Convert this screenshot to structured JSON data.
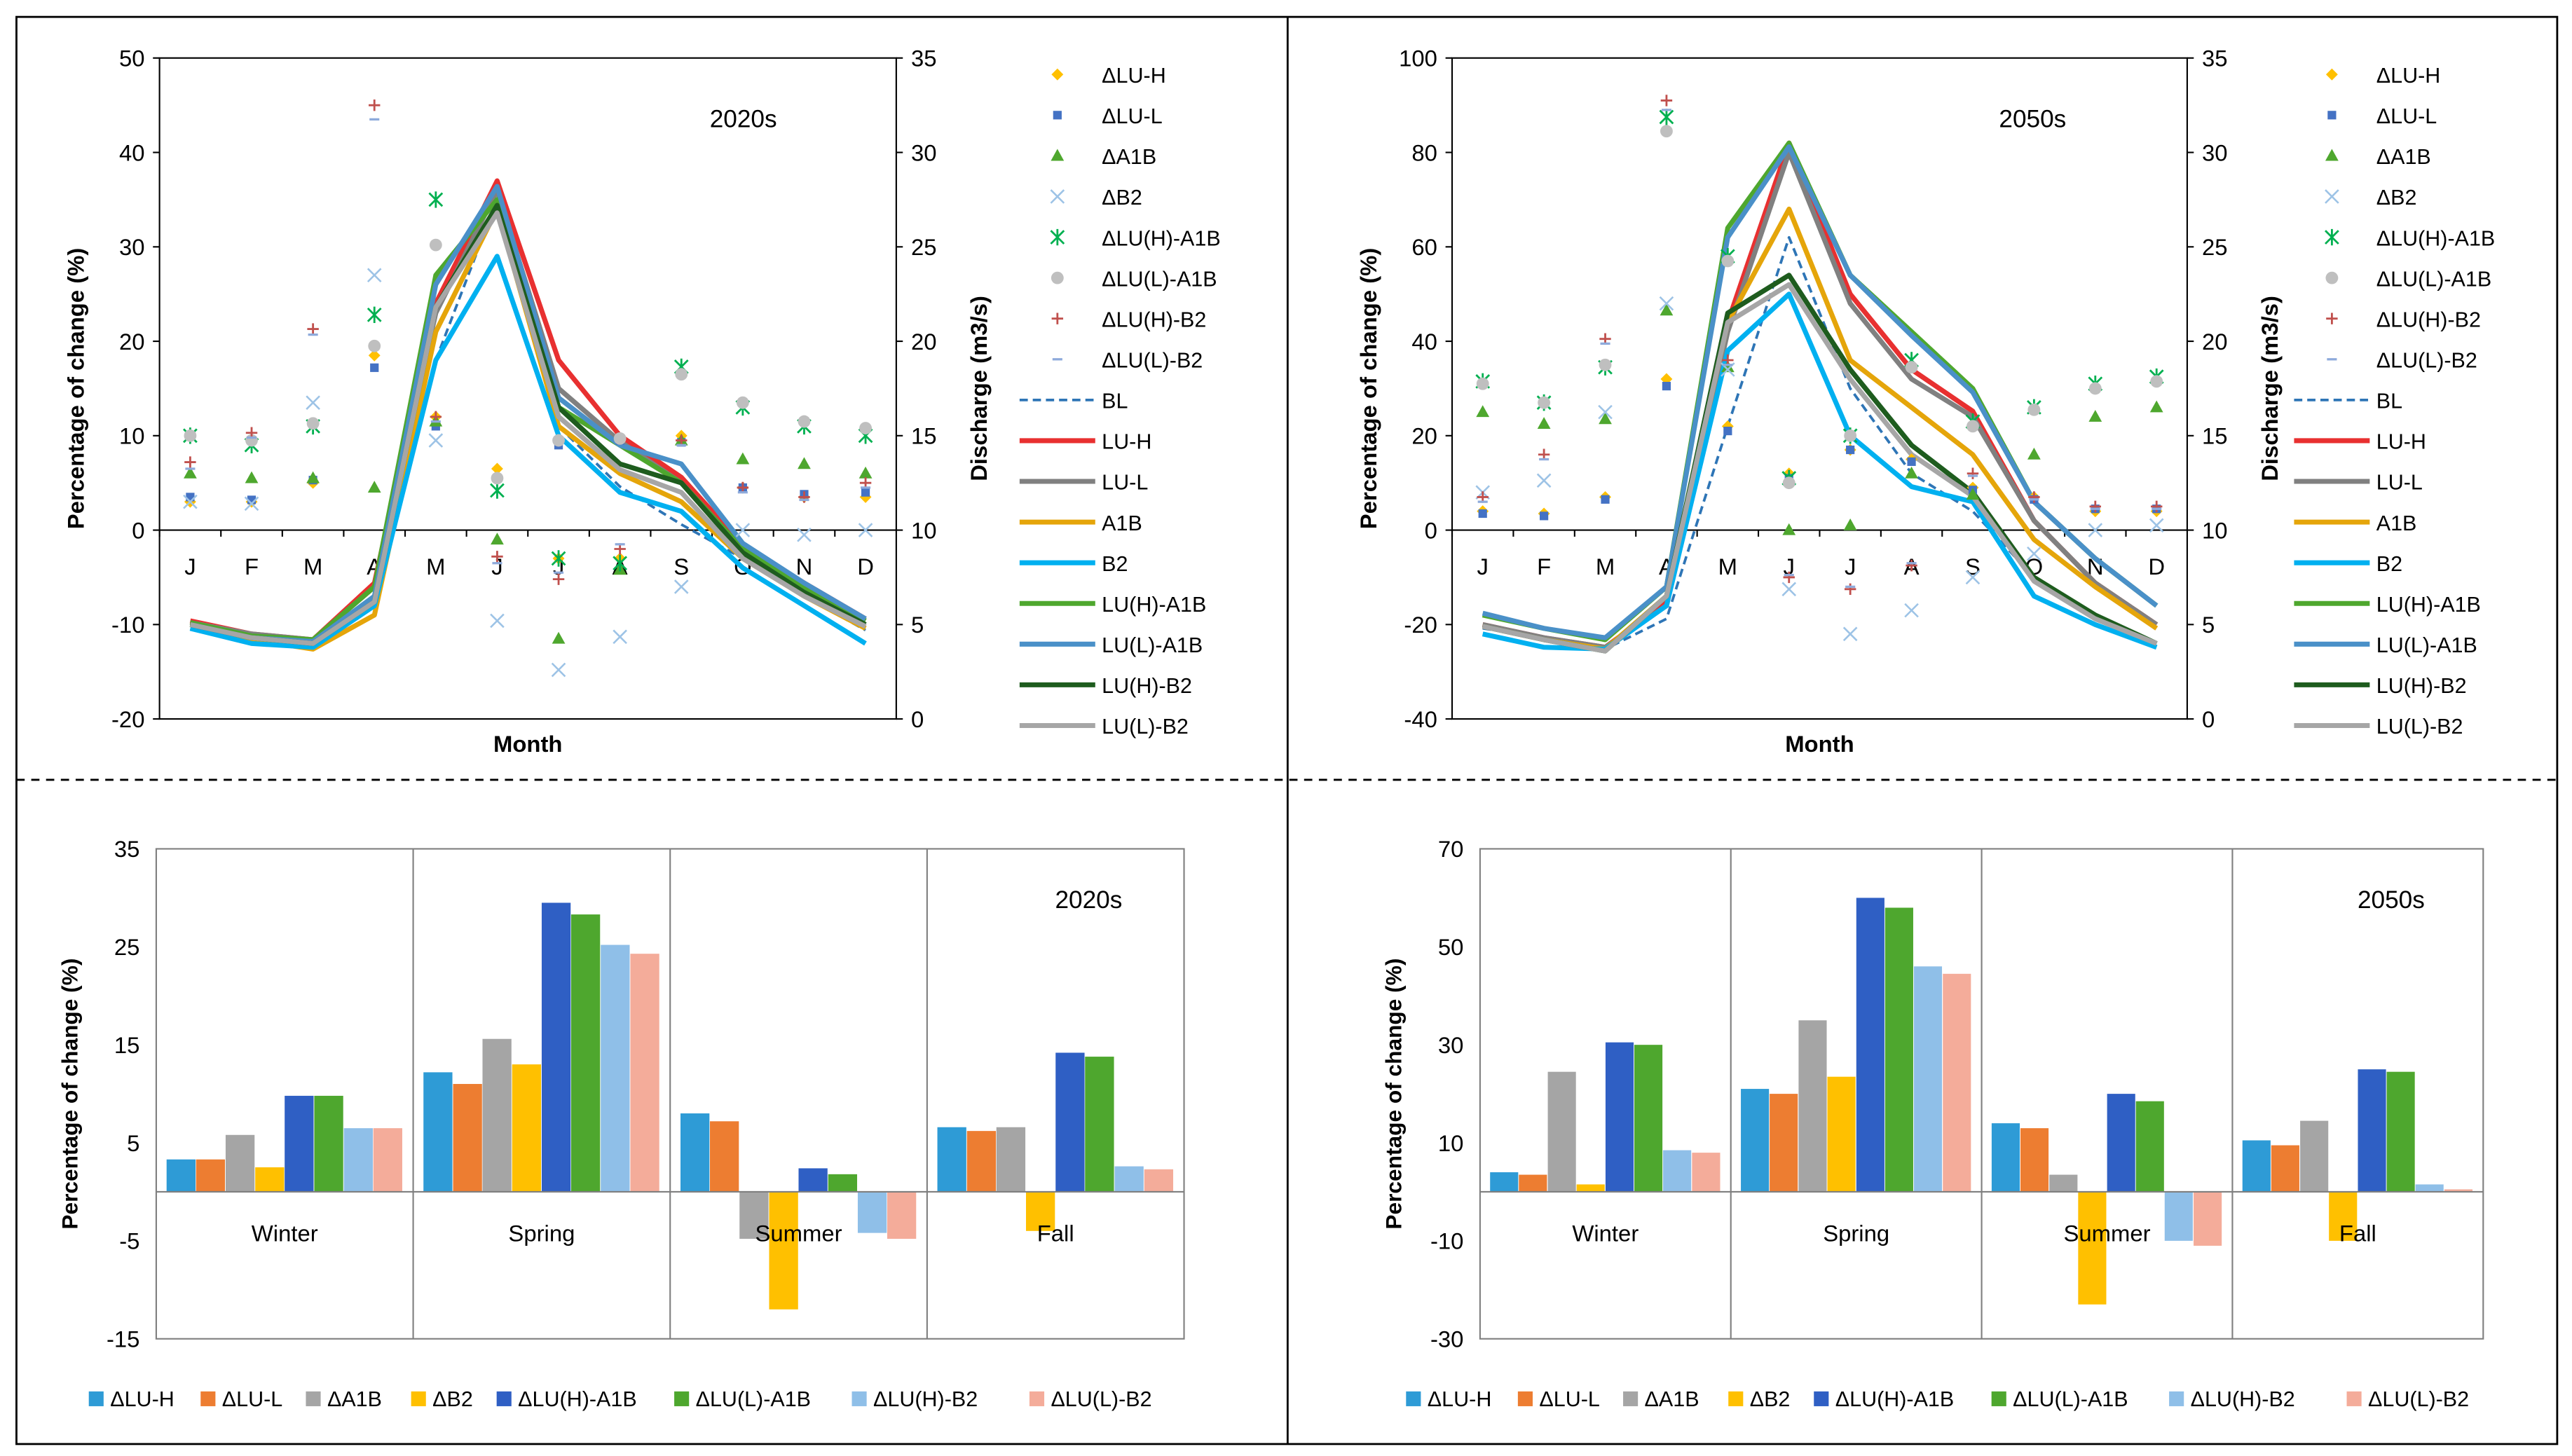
{
  "chart_data": [
    {
      "type": "line",
      "panel": "top-left",
      "title": "2020s",
      "xlabel": "Month",
      "ylabel": "Percentage of change (%)",
      "y2label": "Discharge  (m3/s)",
      "categories": [
        "J",
        "F",
        "M",
        "A",
        "M",
        "J",
        "J",
        "A",
        "S",
        "O",
        "N",
        "D"
      ],
      "ylim": [
        -20,
        50
      ],
      "y2lim": [
        0,
        35
      ],
      "yticks": [
        "-20",
        "-10",
        "0",
        "10",
        "20",
        "30",
        "40",
        "50"
      ],
      "y2ticks": [
        "0",
        "5",
        "10",
        "15",
        "20",
        "25",
        "30",
        "35"
      ],
      "legend": [
        "ΔLU-H",
        "ΔLU-L",
        "ΔA1B",
        "ΔB2",
        "ΔLU(H)-A1B",
        "ΔLU(L)-A1B",
        "ΔLU(H)-B2",
        "ΔLU(L)-B2",
        "BL",
        "LU-H",
        "LU-L",
        "A1B",
        "B2",
        "LU(H)-A1B",
        "LU(L)-A1B",
        "LU(H)-B2",
        "LU(L)-B2"
      ],
      "scatter_series": [
        {
          "name": "ΔLU-H",
          "color": "#ffc000",
          "marker": "diamond",
          "values": [
            3,
            3,
            5,
            18.5,
            12,
            6.5,
            -3,
            -3,
            10,
            4.5,
            3.5,
            3.5
          ]
        },
        {
          "name": "ΔLU-L",
          "color": "#4472c4",
          "marker": "square",
          "values": [
            3.5,
            3.2,
            5.3,
            17.2,
            11,
            5.5,
            9,
            9.5,
            9.3,
            4.5,
            3.8,
            4
          ]
        },
        {
          "name": "ΔA1B",
          "color": "#4ea72e",
          "marker": "triangle",
          "values": [
            6,
            5.5,
            5.5,
            4.5,
            11.5,
            -1,
            -11.5,
            -4.2,
            9.5,
            7.5,
            7,
            6
          ]
        },
        {
          "name": "ΔB2",
          "color": "#9dc3e6",
          "marker": "x",
          "values": [
            3,
            2.8,
            13.5,
            27,
            9.5,
            -9.6,
            -14.8,
            -11.3,
            -6,
            0,
            -0.5,
            0
          ]
        },
        {
          "name": "ΔLU(H)-A1B",
          "color": "#00b050",
          "marker": "asterisk",
          "values": [
            10,
            9,
            11,
            22.8,
            35,
            4.2,
            -3,
            -3.5,
            17.3,
            13,
            11,
            10
          ]
        },
        {
          "name": "ΔLU(L)-A1B",
          "color": "#bfbfbf",
          "marker": "circle",
          "values": [
            10,
            9.5,
            11.3,
            19.5,
            30.2,
            5.5,
            9.5,
            9.7,
            16.5,
            13.5,
            11.5,
            10.8
          ]
        },
        {
          "name": "ΔLU(H)-B2",
          "color": "#c0504d",
          "marker": "plus",
          "values": [
            7.2,
            10.3,
            21.3,
            45,
            12,
            -2.8,
            -5.2,
            -2,
            9.5,
            4.5,
            3.5,
            5
          ]
        },
        {
          "name": "ΔLU(L)-B2",
          "color": "#8eaadb",
          "marker": "dash",
          "values": [
            6.5,
            9.8,
            20.7,
            43.5,
            11.5,
            -3.5,
            -4.5,
            -1.5,
            9,
            4,
            3.2,
            4.5
          ]
        }
      ],
      "line_series": [
        {
          "name": "BL",
          "color": "#2e75b6",
          "dash": true,
          "values": [
            5,
            4.3,
            4,
            6.2,
            19,
            27.5,
            15.5,
            12.3,
            10.3,
            8.5,
            6.5,
            4.7
          ]
        },
        {
          "name": "LU-H",
          "color": "#e83030",
          "values": [
            5.2,
            4.5,
            4.2,
            7.2,
            22,
            28.5,
            19,
            15,
            12.8,
            9.2,
            7.2,
            5.3
          ]
        },
        {
          "name": "LU-L",
          "color": "#808080",
          "values": [
            5.1,
            4.5,
            4.2,
            7,
            21.5,
            28,
            17.5,
            14.7,
            12.5,
            9,
            7,
            5.2
          ]
        },
        {
          "name": "A1B",
          "color": "#e5a50a",
          "values": [
            5,
            4.2,
            3.7,
            5.5,
            20.5,
            27,
            15.5,
            13,
            11.5,
            8.5,
            6.5,
            4.8
          ]
        },
        {
          "name": "B2",
          "color": "#00b0f0",
          "values": [
            4.8,
            4,
            3.8,
            6,
            19,
            24.5,
            15,
            12,
            11,
            8,
            6,
            4
          ]
        },
        {
          "name": "LU(H)-A1B",
          "color": "#4ea72e",
          "values": [
            5.1,
            4.4,
            4.2,
            7,
            23.5,
            27.5,
            16.5,
            14.5,
            12.5,
            9,
            7,
            5.2
          ]
        },
        {
          "name": "LU(L)-A1B",
          "color": "#4a90c8",
          "values": [
            5,
            4.3,
            4.1,
            6.5,
            23,
            28.2,
            17,
            14.5,
            13.5,
            9.3,
            7.2,
            5.3
          ]
        },
        {
          "name": "LU(H)-B2",
          "color": "#1e5c1e",
          "values": [
            5,
            4.3,
            4,
            6.2,
            21.8,
            27.2,
            16.5,
            13.5,
            12.5,
            8.8,
            6.7,
            5
          ]
        },
        {
          "name": "LU(L)-B2",
          "color": "#a6a6a6",
          "values": [
            5,
            4.3,
            4,
            6.2,
            21.8,
            26.8,
            16,
            13.2,
            12,
            8.5,
            6.5,
            4.9
          ]
        }
      ]
    },
    {
      "type": "line",
      "panel": "top-right",
      "title": "2050s",
      "xlabel": "Month",
      "ylabel": "Percentage of change (%)",
      "y2label": "Discharge  (m3/s)",
      "categories": [
        "J",
        "F",
        "M",
        "A",
        "M",
        "J",
        "J",
        "A",
        "S",
        "O",
        "N",
        "D"
      ],
      "ylim": [
        -40,
        100
      ],
      "y2lim": [
        0,
        35
      ],
      "yticks": [
        "-40",
        "-20",
        "0",
        "20",
        "40",
        "60",
        "80",
        "100"
      ],
      "y2ticks": [
        "0",
        "5",
        "10",
        "15",
        "20",
        "25",
        "30",
        "35"
      ],
      "legend": [
        "ΔLU-H",
        "ΔLU-L",
        "ΔA1B",
        "ΔB2",
        "ΔLU(H)-A1B",
        "ΔLU(L)-A1B",
        "ΔLU(H)-B2",
        "ΔLU(L)-B2",
        "BL",
        "LU-H",
        "LU-L",
        "A1B",
        "B2",
        "LU(H)-A1B",
        "LU(L)-A1B",
        "LU(H)-B2",
        "LU(L)-B2"
      ],
      "scatter_series": [
        {
          "name": "ΔLU-H",
          "color": "#ffc000",
          "marker": "diamond",
          "values": [
            4,
            3.5,
            7,
            32,
            22,
            12,
            17,
            15,
            9,
            7,
            4,
            4
          ]
        },
        {
          "name": "ΔLU-L",
          "color": "#4472c4",
          "marker": "square",
          "values": [
            3.5,
            3,
            6.5,
            30.5,
            21,
            11,
            17,
            14.5,
            8.5,
            6.5,
            4.5,
            4.5
          ]
        },
        {
          "name": "ΔA1B",
          "color": "#4ea72e",
          "marker": "triangle",
          "values": [
            25,
            22.5,
            23.5,
            46.5,
            34.5,
            0,
            1,
            12,
            7.5,
            16,
            24,
            26
          ]
        },
        {
          "name": "ΔB2",
          "color": "#9dc3e6",
          "marker": "x",
          "values": [
            8,
            10.5,
            25,
            48,
            34,
            -12.5,
            -22,
            -17,
            -10,
            -5,
            0,
            1
          ]
        },
        {
          "name": "ΔLU(H)-A1B",
          "color": "#00b050",
          "marker": "asterisk",
          "values": [
            31.5,
            27,
            34.5,
            87.5,
            58,
            11,
            20,
            36,
            23,
            26,
            31,
            32.5
          ]
        },
        {
          "name": "ΔLU(L)-A1B",
          "color": "#bfbfbf",
          "marker": "circle",
          "values": [
            31,
            27,
            35,
            84.5,
            57,
            10,
            20,
            34.5,
            22,
            25.5,
            30,
            31.5
          ]
        },
        {
          "name": "ΔLU(H)-B2",
          "color": "#c0504d",
          "marker": "plus",
          "values": [
            7,
            16,
            40.5,
            91,
            36,
            -10,
            -12.5,
            -7.5,
            12,
            7,
            5,
            5
          ]
        },
        {
          "name": "ΔLU(L)-B2",
          "color": "#8eaadb",
          "marker": "dash",
          "values": [
            6,
            15,
            39.5,
            89,
            35,
            -9.5,
            -12,
            -7,
            11.5,
            6.5,
            4.5,
            4.5
          ]
        }
      ],
      "line_series": [
        {
          "name": "BL",
          "color": "#2e75b6",
          "dash": true,
          "values": [
            4.8,
            4.3,
            3.7,
            5.3,
            15.5,
            25.5,
            17.5,
            13,
            11,
            7.5,
            5.5,
            4
          ]
        },
        {
          "name": "LU-H",
          "color": "#e83030",
          "values": [
            5,
            4.3,
            3.8,
            6.2,
            21,
            30.5,
            22.5,
            18.5,
            16.3,
            10.5,
            7.2,
            5
          ]
        },
        {
          "name": "LU-L",
          "color": "#808080",
          "values": [
            5,
            4.3,
            3.8,
            6,
            20.5,
            30,
            22,
            18,
            16,
            10.5,
            7.2,
            5
          ]
        },
        {
          "name": "A1B",
          "color": "#e5a50a",
          "values": [
            4.9,
            4.2,
            3.7,
            6.5,
            21,
            27,
            19,
            16.5,
            14,
            9.5,
            7,
            4.8
          ]
        },
        {
          "name": "B2",
          "color": "#00b0f0",
          "values": [
            4.5,
            3.8,
            3.7,
            6,
            19.5,
            22.5,
            15,
            12.3,
            11.5,
            6.5,
            5,
            3.8
          ]
        },
        {
          "name": "LU(H)-A1B",
          "color": "#4ea72e",
          "values": [
            5.5,
            4.8,
            4.2,
            7,
            26,
            30.5,
            23.5,
            20.5,
            17.5,
            11.5,
            8.5,
            6
          ]
        },
        {
          "name": "LU(L)-A1B",
          "color": "#4a90c8",
          "values": [
            5.6,
            4.8,
            4.3,
            7,
            25.5,
            30.3,
            23.5,
            20.3,
            17.3,
            11.5,
            8.5,
            6
          ]
        },
        {
          "name": "LU(H)-B2",
          "color": "#1e5c1e",
          "values": [
            4.9,
            4.2,
            3.6,
            6.5,
            21.5,
            23.5,
            18.5,
            14.5,
            12,
            7.5,
            5.5,
            4
          ]
        },
        {
          "name": "LU(L)-B2",
          "color": "#a6a6a6",
          "values": [
            4.9,
            4.2,
            3.6,
            6.5,
            21,
            23,
            18,
            14,
            11.8,
            7.3,
            5.3,
            4
          ]
        }
      ]
    },
    {
      "type": "bar",
      "panel": "bottom-left",
      "title": "2020s",
      "ylabel": "Percentage of change (%)",
      "categories": [
        "Winter",
        "Spring",
        "Summer",
        "Fall"
      ],
      "ylim": [
        -15,
        35
      ],
      "yticks": [
        "-15",
        "-5",
        "5",
        "15",
        "25",
        "35"
      ],
      "series": [
        {
          "name": "ΔLU-H",
          "color": "#2e9bd6",
          "values": [
            3.3,
            12.2,
            8,
            6.6
          ]
        },
        {
          "name": "ΔLU-L",
          "color": "#ed7d31",
          "values": [
            3.3,
            11,
            7.2,
            6.2
          ]
        },
        {
          "name": "ΔA1B",
          "color": "#a5a5a5",
          "values": [
            5.8,
            15.6,
            -4.8,
            6.6
          ]
        },
        {
          "name": "ΔB2",
          "color": "#ffc000",
          "values": [
            2.5,
            13,
            -12,
            -4
          ]
        },
        {
          "name": "ΔLU(H)-A1B",
          "color": "#2f5fc4",
          "values": [
            9.8,
            29.5,
            2.4,
            14.2
          ]
        },
        {
          "name": "ΔLU(L)-A1B",
          "color": "#4ea72e",
          "values": [
            9.8,
            28.3,
            1.8,
            13.8
          ]
        },
        {
          "name": "ΔLU(H)-B2",
          "color": "#8fbfe8",
          "values": [
            6.5,
            25.2,
            -4.2,
            2.6
          ]
        },
        {
          "name": "ΔLU(L)-B2",
          "color": "#f4ac9a",
          "values": [
            6.5,
            24.3,
            -4.8,
            2.3
          ]
        }
      ],
      "legend": [
        "ΔLU-H",
        "ΔLU-L",
        "ΔA1B",
        "ΔB2",
        "ΔLU(H)-A1B",
        "ΔLU(L)-A1B",
        "ΔLU(H)-B2",
        "ΔLU(L)-B2"
      ]
    },
    {
      "type": "bar",
      "panel": "bottom-right",
      "title": "2050s",
      "ylabel": "Percentage of change (%)",
      "categories": [
        "Winter",
        "Spring",
        "Summer",
        "Fall"
      ],
      "ylim": [
        -30,
        70
      ],
      "yticks": [
        "-30",
        "-10",
        "10",
        "30",
        "50",
        "70"
      ],
      "series": [
        {
          "name": "ΔLU-H",
          "color": "#2e9bd6",
          "values": [
            4,
            21,
            14,
            10.5
          ]
        },
        {
          "name": "ΔLU-L",
          "color": "#ed7d31",
          "values": [
            3.5,
            20,
            13,
            9.5
          ]
        },
        {
          "name": "ΔA1B",
          "color": "#a5a5a5",
          "values": [
            24.5,
            35,
            3.5,
            14.5
          ]
        },
        {
          "name": "ΔB2",
          "color": "#ffc000",
          "values": [
            1.5,
            23.5,
            -23,
            -10
          ]
        },
        {
          "name": "ΔLU(H)-A1B",
          "color": "#2f5fc4",
          "values": [
            30.5,
            60,
            20,
            25
          ]
        },
        {
          "name": "ΔLU(L)-A1B",
          "color": "#4ea72e",
          "values": [
            30,
            58,
            18.5,
            24.5
          ]
        },
        {
          "name": "ΔLU(H)-B2",
          "color": "#8fbfe8",
          "values": [
            8.5,
            46,
            -10,
            1.5
          ]
        },
        {
          "name": "ΔLU(L)-B2",
          "color": "#f4ac9a",
          "values": [
            8,
            44.5,
            -11,
            0.5
          ]
        }
      ],
      "legend": [
        "ΔLU-H",
        "ΔLU-L",
        "ΔA1B",
        "ΔB2",
        "ΔLU(H)-A1B",
        "ΔLU(L)-A1B",
        "ΔLU(H)-B2",
        "ΔLU(L)-B2"
      ]
    }
  ]
}
